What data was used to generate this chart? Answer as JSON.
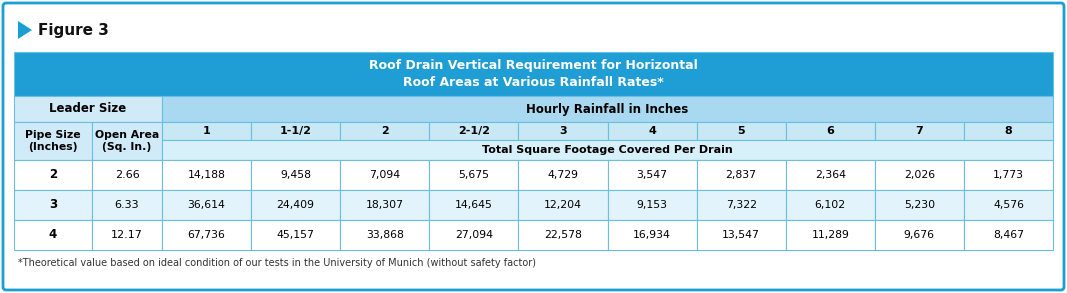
{
  "figure_label": "Figure 3",
  "title_line1": "Roof Drain Vertical Requirement for Horizontal",
  "title_line2": "Roof Areas at Various Rainfall Rates*",
  "leader_size_label": "Leader Size",
  "hourly_rainfall_label": "Hourly Rainfall in Inches",
  "pipe_size_label": "Pipe Size\n(Inches)",
  "open_area_label": "Open Area\n(Sq. In.)",
  "rainfall_cols": [
    "1",
    "1-1/2",
    "2",
    "2-1/2",
    "3",
    "4",
    "5",
    "6",
    "7",
    "8"
  ],
  "total_sqft_label": "Total Square Footage Covered Per Drain",
  "rows": [
    {
      "pipe": "2",
      "area": "2.66",
      "values": [
        "14,188",
        "9,458",
        "7,094",
        "5,675",
        "4,729",
        "3,547",
        "2,837",
        "2,364",
        "2,026",
        "1,773"
      ]
    },
    {
      "pipe": "3",
      "area": "6.33",
      "values": [
        "36,614",
        "24,409",
        "18,307",
        "14,645",
        "12,204",
        "9,153",
        "7,322",
        "6,102",
        "5,230",
        "4,576"
      ]
    },
    {
      "pipe": "4",
      "area": "12.17",
      "values": [
        "67,736",
        "45,157",
        "33,868",
        "27,094",
        "22,578",
        "16,934",
        "13,547",
        "11,289",
        "9,676",
        "8,467"
      ]
    }
  ],
  "footnote": "*Theoretical value based on ideal condition of our tests in the University of Munich (without safety factor)",
  "colors": {
    "outer_border": "#1a9fd4",
    "title_bg": "#1e9ed5",
    "title_text": "#ffffff",
    "header1_bg": "#d0ebf7",
    "header2_bg": "#a8d9f0",
    "col_header_bg": "#c8e8f5",
    "subheader_bg": "#d8f0fa",
    "row_bg_white": "#ffffff",
    "row_bg_blue": "#e2f3fb",
    "cell_border": "#6abfe0",
    "figure_label_color": "#111111",
    "footnote_color": "#333333",
    "outer_bg": "#ffffff",
    "arrow_color": "#1a9fd4"
  },
  "figsize": [
    10.67,
    2.93
  ],
  "dpi": 100
}
